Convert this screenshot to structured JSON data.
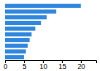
{
  "chart_data": {
    "type": "bar",
    "orientation": "horizontal",
    "categories": [
      null,
      null,
      null,
      null,
      null,
      null,
      null,
      null,
      null,
      null
    ],
    "values": [
      20.0,
      13.5,
      11.0,
      9.5,
      8.0,
      7.0,
      6.5,
      6.0,
      5.5,
      5.0
    ],
    "color": "#2e86de",
    "xlim": [
      0,
      24
    ],
    "xticks": [
      0,
      5,
      10,
      15,
      20
    ],
    "grid": false,
    "tick_labels": "x"
  }
}
